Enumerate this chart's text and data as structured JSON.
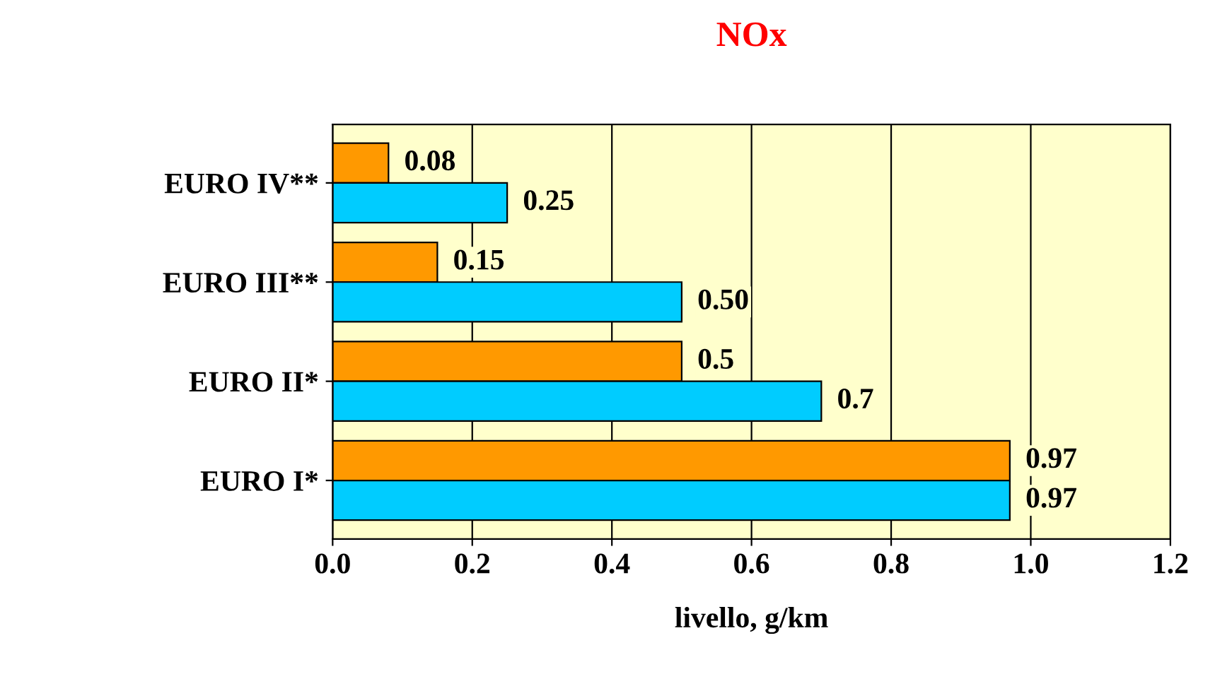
{
  "chart_data": {
    "type": "bar",
    "orientation": "horizontal",
    "title": "NOx",
    "xlabel": "livello, g/km",
    "categories": [
      "EURO IV**",
      "EURO III**",
      "EURO II*",
      "EURO I*"
    ],
    "series": [
      {
        "color": "#ff9900",
        "values": [
          0.08,
          0.15,
          0.5,
          0.97
        ],
        "value_labels": [
          "0.08",
          "0.15",
          "0.5",
          "0.97"
        ]
      },
      {
        "color": "#00ccff",
        "values": [
          0.25,
          0.5,
          0.7,
          0.97
        ],
        "value_labels": [
          "0.25",
          "0.50",
          "0.7",
          "0.97"
        ]
      }
    ],
    "xlim": [
      0,
      1.2
    ],
    "xticks": [
      {
        "value": 0,
        "label": "0.0"
      },
      {
        "value": 0.2,
        "label": "0.2"
      },
      {
        "value": 0.4,
        "label": "0.4"
      },
      {
        "value": 0.6,
        "label": "0.6"
      },
      {
        "value": 0.8,
        "label": "0.8"
      },
      {
        "value": 1.0,
        "label": "1.0"
      },
      {
        "value": 1.2,
        "label": "1.2"
      }
    ],
    "grid": "x",
    "legend": false
  }
}
